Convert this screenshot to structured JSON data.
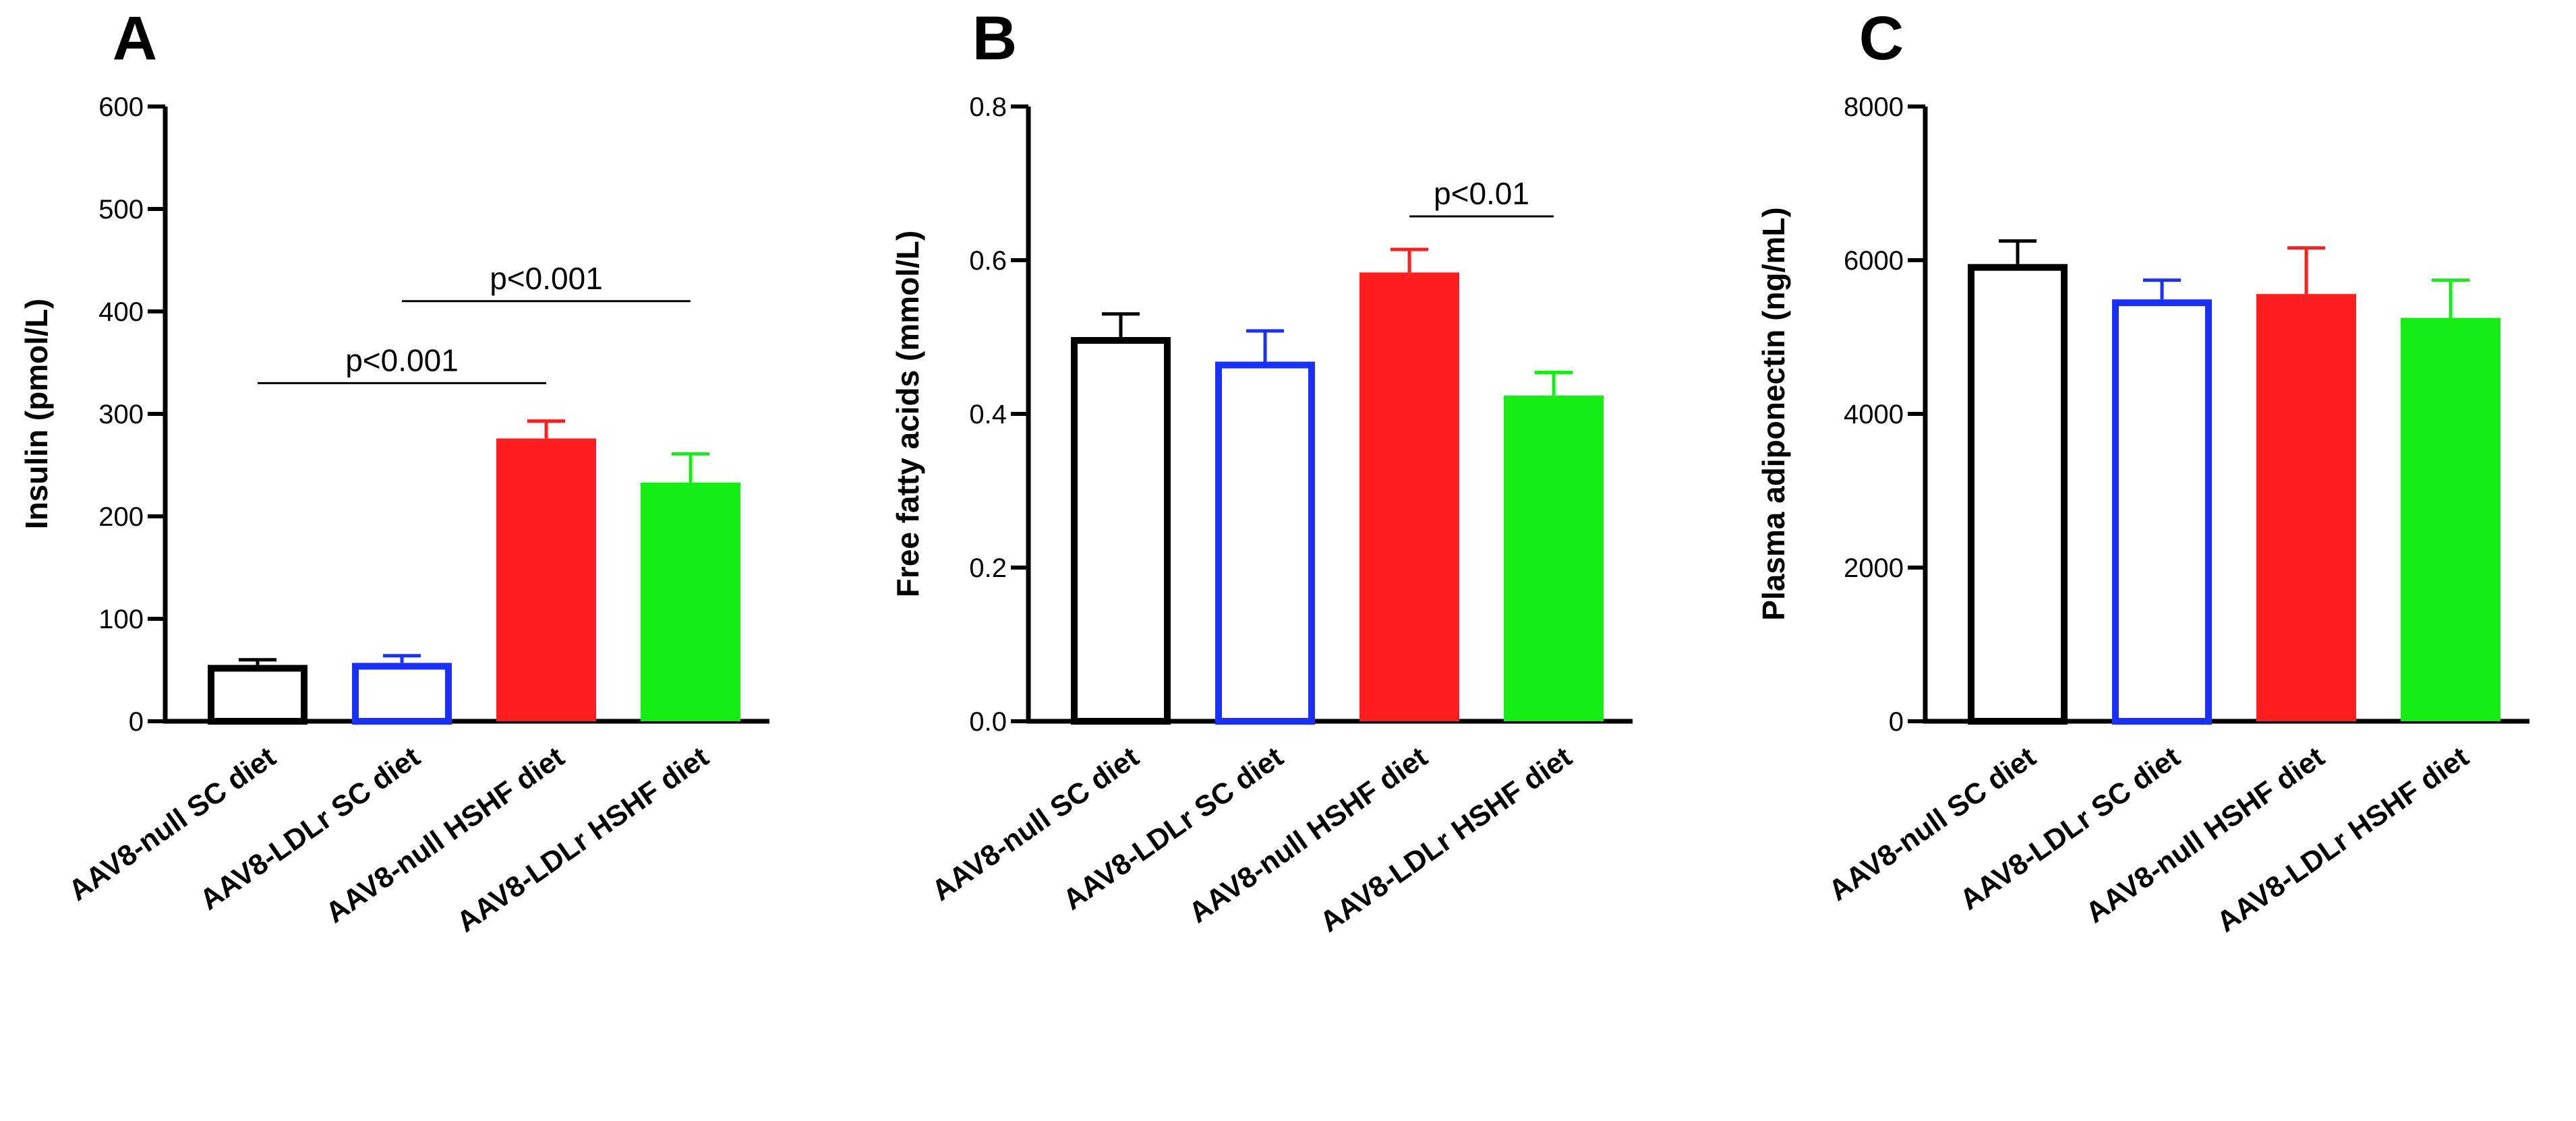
{
  "colors": {
    "AAV8-null SC diet": "#000000",
    "AAV8-LDLr SC diet": "#1a30ff",
    "AAV8-null HSHF diet": "#ff1e1e",
    "AAV8-LDLr HSHF diet": "#14ee14"
  },
  "chart_data": [
    {
      "type": "bar",
      "panel": "A",
      "ylabel": "Insulin (pmol/L)",
      "ylim": [
        0,
        600
      ],
      "yticks": [
        0,
        100,
        200,
        300,
        400,
        500,
        600
      ],
      "ytick_labels": [
        "0",
        "100",
        "200",
        "300",
        "400",
        "500",
        "600"
      ],
      "categories": [
        "AAV8-null SC diet",
        "AAV8-LDLr SC diet",
        "AAV8-null HSHF diet",
        "AAV8-LDLr HSHF diet"
      ],
      "values": [
        55,
        57,
        276,
        233
      ],
      "errors": [
        5,
        7,
        17,
        28
      ],
      "fill": [
        "open",
        "open",
        "filled",
        "filled"
      ],
      "annotations": [
        {
          "text": "p<0.001",
          "from": 0,
          "to": 2,
          "y": 330
        },
        {
          "text": "p<0.001",
          "from": 1,
          "to": 3,
          "y": 410
        }
      ]
    },
    {
      "type": "bar",
      "panel": "B",
      "ylabel": "Free fatty acids (mmol/L)",
      "ylim": [
        0,
        0.8
      ],
      "yticks": [
        0,
        0.2,
        0.4,
        0.6,
        0.8
      ],
      "ytick_labels": [
        "0.0",
        "0.2",
        "0.4",
        "0.6",
        "0.8"
      ],
      "categories": [
        "AAV8-null SC diet",
        "AAV8-LDLr SC diet",
        "AAV8-null HSHF diet",
        "AAV8-LDLr HSHF diet"
      ],
      "values": [
        0.5,
        0.468,
        0.584,
        0.424
      ],
      "errors": [
        0.03,
        0.04,
        0.03,
        0.03
      ],
      "fill": [
        "open",
        "open",
        "filled",
        "filled"
      ],
      "annotations": [
        {
          "text": "p<0.01",
          "from": 2,
          "to": 3,
          "y": 0.657
        }
      ]
    },
    {
      "type": "bar",
      "panel": "C",
      "ylabel": "Plasma adiponectin (ng/mL)",
      "ylim": [
        0,
        8000
      ],
      "yticks": [
        0,
        2000,
        4000,
        6000,
        8000
      ],
      "ytick_labels": [
        "0",
        "2000",
        "4000",
        "6000",
        "8000"
      ],
      "categories": [
        "AAV8-null SC diet",
        "AAV8-LDLr SC diet",
        "AAV8-null HSHF diet",
        "AAV8-LDLr HSHF diet"
      ],
      "values": [
        5950,
        5490,
        5560,
        5250
      ],
      "errors": [
        300,
        250,
        600,
        490
      ],
      "fill": [
        "open",
        "open",
        "filled",
        "filled"
      ],
      "annotations": []
    }
  ]
}
